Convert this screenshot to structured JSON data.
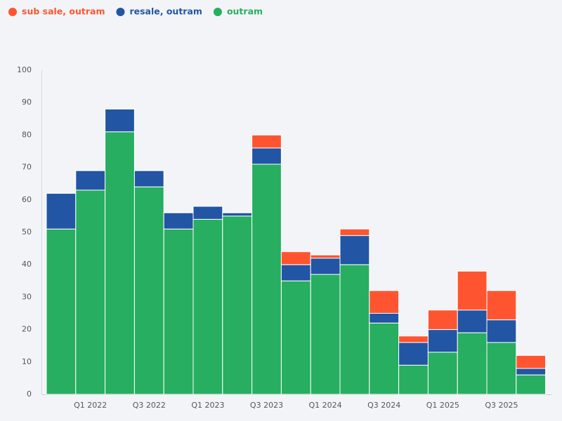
{
  "chart_data": {
    "type": "stacked_bar",
    "categories": [
      null,
      "Q1 2022",
      null,
      "Q3 2022",
      null,
      "Q1 2023",
      null,
      "Q3 2023",
      null,
      "Q1 2024",
      null,
      "Q3 2024",
      null,
      "Q1 2025",
      null,
      "Q3 2025",
      null
    ],
    "series": [
      {
        "name": "sub sale, outram",
        "color": "#fe5530",
        "values": [
          0,
          0,
          0,
          0,
          0,
          0,
          0,
          4,
          4,
          1,
          2,
          7,
          2,
          6,
          12,
          9,
          4
        ]
      },
      {
        "name": "resale, outram",
        "color": "#2255a4",
        "values": [
          11,
          6,
          7,
          5,
          5,
          4,
          1,
          5,
          5,
          5,
          9,
          3,
          7,
          7,
          7,
          7,
          2
        ]
      },
      {
        "name": "outram",
        "color": "#27ae60",
        "values": [
          51,
          63,
          81,
          64,
          51,
          54,
          55,
          71,
          35,
          37,
          40,
          22,
          9,
          13,
          19,
          16,
          6
        ]
      }
    ],
    "ylim": [
      0,
      100
    ],
    "yticks": [
      0,
      10,
      20,
      30,
      40,
      50,
      60,
      70,
      80,
      90,
      100
    ],
    "grid": false,
    "legend": "top-left"
  }
}
